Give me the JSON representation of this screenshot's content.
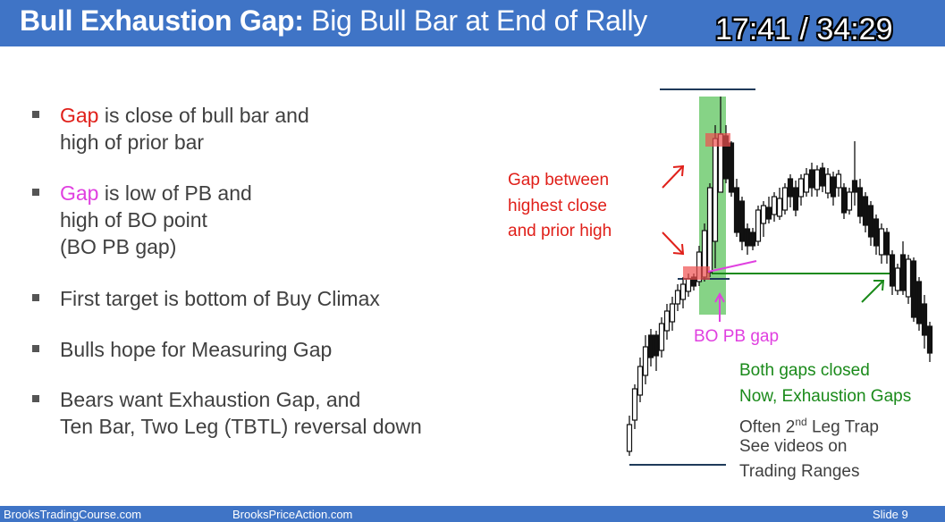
{
  "title": {
    "bold": "Bull Exhaustion Gap:",
    "rest": " Big Bull Bar at End of Rally"
  },
  "timer": "17:41 / 34:29",
  "bullets": [
    {
      "parts": [
        {
          "text": "Gap",
          "color": "#e0201a"
        },
        {
          "text": " is close of bull bar and"
        }
      ],
      "line2": "high of prior bar",
      "line3": ""
    },
    {
      "parts": [
        {
          "text": "Gap",
          "color": "#e040e0"
        },
        {
          "text": " is low of PB and"
        }
      ],
      "line2": "high of BO point",
      "line3": "(BO PB gap)"
    },
    {
      "parts": [
        {
          "text": "First target is bottom of Buy Climax"
        }
      ],
      "line2": "",
      "line3": ""
    },
    {
      "parts": [
        {
          "text": "Bulls hope for Measuring Gap"
        }
      ],
      "line2": "",
      "line3": ""
    },
    {
      "parts": [
        {
          "text": "Bears want Exhaustion Gap, and"
        }
      ],
      "line2": "Ten Bar, Two Leg (TBTL) reversal down",
      "line3": ""
    }
  ],
  "annotations": {
    "gap_label": [
      "Gap between",
      "highest close",
      "and prior high"
    ],
    "bo_pb_gap": "BO PB gap",
    "both_gaps_closed": "Both gaps closed",
    "now_exhaustion": "Now, Exhaustion Gaps",
    "often_prefix": "Often 2",
    "often_sup": "nd",
    "often_suffix": " Leg Trap",
    "see_videos": "See videos on",
    "trading_ranges": "Trading Ranges"
  },
  "colors": {
    "title_bar": "#3f74c6",
    "red": "#e0201a",
    "magenta": "#e040e0",
    "green": "#1a8a1a",
    "navy": "#1f3a5a"
  },
  "footer": {
    "left": "BrooksTradingCourse.com",
    "center": "BrooksPriceAction.com",
    "slide": "Slide  9"
  }
}
